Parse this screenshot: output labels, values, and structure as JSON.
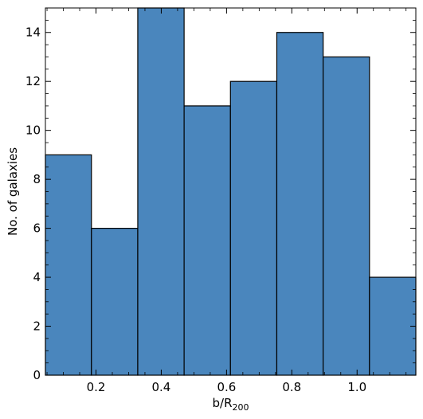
{
  "chart_data": {
    "type": "bar",
    "subtype": "histogram",
    "xlabel": "b/R",
    "xlabel_subscript": "200",
    "ylabel": "No. of galaxies",
    "xlim": [
      0.045,
      1.18
    ],
    "ylim": [
      0,
      15
    ],
    "bins": [
      {
        "x0": 0.045,
        "x1": 0.186,
        "value": 9
      },
      {
        "x0": 0.186,
        "x1": 0.328,
        "value": 6
      },
      {
        "x0": 0.328,
        "x1": 0.47,
        "value": 15
      },
      {
        "x0": 0.47,
        "x1": 0.612,
        "value": 11
      },
      {
        "x0": 0.612,
        "x1": 0.754,
        "value": 12
      },
      {
        "x0": 0.754,
        "x1": 0.896,
        "value": 14
      },
      {
        "x0": 0.896,
        "x1": 1.038,
        "value": 13
      },
      {
        "x0": 1.038,
        "x1": 1.18,
        "value": 4
      }
    ],
    "xticks": [
      0.2,
      0.4,
      0.6,
      0.8,
      1.0
    ],
    "xtick_labels": [
      "0.2",
      "0.4",
      "0.6",
      "0.8",
      "1.0"
    ],
    "yticks": [
      0,
      2,
      4,
      6,
      8,
      10,
      12,
      14
    ],
    "ytick_labels": [
      "0",
      "2",
      "4",
      "6",
      "8",
      "10",
      "12",
      "14"
    ],
    "bar_color": "#4a86bd",
    "edge_color": "#000000",
    "grid": false,
    "legend": "none"
  }
}
